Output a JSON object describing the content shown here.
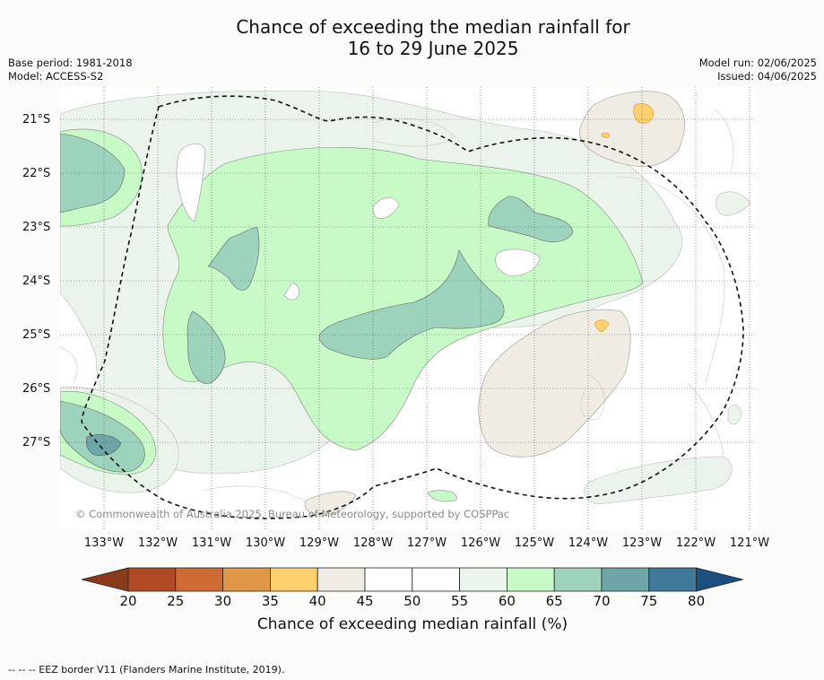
{
  "title": {
    "line1": "Chance of exceeding the median rainfall for",
    "line2": "16 to 29 June 2025"
  },
  "meta_left": {
    "base_period": "Base period: 1981-2018",
    "model": "Model: ACCESS-S2"
  },
  "meta_right": {
    "model_run": "Model run: 02/06/2025",
    "issued": "Issued: 04/06/2025"
  },
  "lat_labels": [
    "21°S",
    "22°S",
    "23°S",
    "24°S",
    "25°S",
    "26°S",
    "27°S"
  ],
  "lon_labels": [
    "133°W",
    "132°W",
    "131°W",
    "130°W",
    "129°W",
    "128°W",
    "127°W",
    "126°W",
    "125°W",
    "124°W",
    "123°W",
    "122°W",
    "121°W"
  ],
  "copyright": "© Commonwealth of Australia 2025, Bureau of Meteorology, supported by COSPPac",
  "colorbar": {
    "ticks": [
      "20",
      "25",
      "30",
      "35",
      "40",
      "45",
      "50",
      "55",
      "60",
      "65",
      "70",
      "75",
      "80"
    ],
    "colors": [
      "#8c3a1c",
      "#b04a25",
      "#cf6a35",
      "#e09847",
      "#fed06c",
      "#f0ece4",
      "#ffffff",
      "#ffffff",
      "#eaf4ea",
      "#c8fac8",
      "#9dd2bc",
      "#6ea5a8",
      "#407a98",
      "#1a4f80"
    ],
    "label": "Chance of exceeding median rainfall (%)"
  },
  "legend_note": "--  --  -- EEZ border V11 (Flanders Marine Institute, 2019)."
}
